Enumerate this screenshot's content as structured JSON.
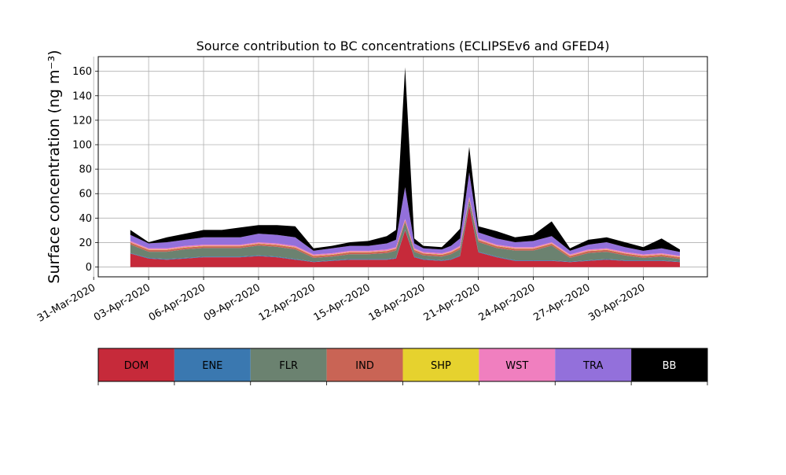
{
  "chart_data": {
    "type": "area",
    "stacked": true,
    "title": "Source contribution to BC concentrations (ECLIPSEv6 and GFED4)",
    "ylabel": "Surface concentration (ng m⁻³)",
    "xlabel": "",
    "ylim": [
      -8,
      172
    ],
    "yticks": [
      0,
      20,
      40,
      60,
      80,
      100,
      120,
      140,
      160
    ],
    "xlim": [
      "2020-03-31T06:00",
      "2020-05-03T12:00"
    ],
    "xticks": [
      "2020-03-31",
      "2020-04-03",
      "2020-04-06",
      "2020-04-09",
      "2020-04-12",
      "2020-04-15",
      "2020-04-18",
      "2020-04-21",
      "2020-04-24",
      "2020-04-27",
      "2020-04-30"
    ],
    "xtick_labels": [
      "31-Mar-2020",
      "03-Apr-2020",
      "06-Apr-2020",
      "09-Apr-2020",
      "12-Apr-2020",
      "15-Apr-2020",
      "18-Apr-2020",
      "21-Apr-2020",
      "24-Apr-2020",
      "27-Apr-2020",
      "30-Apr-2020"
    ],
    "grid": true,
    "legend": "colorbar-below",
    "x": [
      "2020-04-02",
      "2020-04-03",
      "2020-04-04",
      "2020-04-05",
      "2020-04-06",
      "2020-04-07",
      "2020-04-08",
      "2020-04-09",
      "2020-04-10",
      "2020-04-11",
      "2020-04-12",
      "2020-04-13",
      "2020-04-14",
      "2020-04-15",
      "2020-04-16",
      "2020-04-16T12:00",
      "2020-04-17",
      "2020-04-17T12:00",
      "2020-04-18",
      "2020-04-19",
      "2020-04-19T12:00",
      "2020-04-20",
      "2020-04-20T12:00",
      "2020-04-21",
      "2020-04-22",
      "2020-04-23",
      "2020-04-24",
      "2020-04-25",
      "2020-04-26",
      "2020-04-27",
      "2020-04-28",
      "2020-04-29",
      "2020-04-30",
      "2020-05-01",
      "2020-05-02"
    ],
    "series": [
      {
        "name": "DOM",
        "color": "#c62a3a",
        "values": [
          11,
          7,
          6,
          7,
          8,
          8,
          8,
          9,
          8,
          6,
          4,
          5,
          6,
          6,
          6,
          7,
          30,
          8,
          6,
          5,
          6,
          9,
          50,
          12,
          8,
          5,
          5,
          5,
          4,
          5,
          6,
          5,
          5,
          5,
          4
        ]
      },
      {
        "name": "ENE",
        "color": "#3a78b0",
        "values": [
          0.5,
          0.5,
          0.5,
          0.5,
          0.5,
          0.5,
          0.5,
          0.5,
          0.5,
          0.5,
          0.5,
          0.5,
          0.5,
          0.5,
          0.5,
          0.5,
          0.5,
          0.5,
          0.5,
          0.5,
          0.5,
          0.5,
          0.5,
          0.5,
          0.5,
          0.5,
          0.5,
          0.5,
          0.5,
          0.5,
          0.5,
          0.5,
          0.5,
          0.5,
          0.5
        ]
      },
      {
        "name": "FLR",
        "color": "#6b8270",
        "values": [
          7,
          5,
          6,
          7,
          7,
          7,
          7,
          8,
          8,
          8,
          3,
          3,
          4,
          4,
          5,
          6,
          6,
          4,
          3,
          3,
          4,
          5,
          4,
          8,
          7,
          8,
          8,
          12,
          3,
          6,
          6,
          4,
          2,
          3,
          2
        ]
      },
      {
        "name": "IND",
        "color": "#c96455",
        "values": [
          1.5,
          1.5,
          1.5,
          1.5,
          1.5,
          1.5,
          1.5,
          1.5,
          1.5,
          1.5,
          1.5,
          1.5,
          1.5,
          1.5,
          1.5,
          1.5,
          1.5,
          1.5,
          1.5,
          1.5,
          1.5,
          1.5,
          1.5,
          1.5,
          1.5,
          1.5,
          1.5,
          1.5,
          1.5,
          1.5,
          1.5,
          1.5,
          1.5,
          1.5,
          1.5
        ]
      },
      {
        "name": "SHP",
        "color": "#e6d22e",
        "values": [
          0.3,
          0.3,
          0.3,
          0.3,
          0.3,
          0.3,
          0.3,
          0.3,
          0.3,
          0.3,
          0.3,
          0.3,
          0.3,
          0.3,
          0.3,
          0.3,
          0.3,
          0.3,
          0.3,
          0.3,
          0.3,
          0.3,
          0.3,
          0.3,
          0.3,
          0.3,
          0.3,
          0.3,
          0.3,
          0.3,
          0.3,
          0.3,
          0.3,
          0.3,
          0.3
        ]
      },
      {
        "name": "WST",
        "color": "#f07fbf",
        "values": [
          1,
          1,
          1,
          1,
          1,
          1,
          1,
          1,
          1,
          1,
          1,
          1,
          1,
          1,
          1,
          1,
          1,
          1,
          1,
          1,
          1,
          1,
          1,
          1,
          1,
          1,
          1,
          1,
          1,
          1,
          1,
          1,
          1,
          1,
          1
        ]
      },
      {
        "name": "TRA",
        "color": "#9370db",
        "values": [
          5,
          4,
          5,
          5,
          6,
          6,
          6,
          7,
          7,
          7,
          3,
          4,
          4,
          4,
          5,
          6,
          26,
          4,
          3,
          3,
          4,
          6,
          20,
          5,
          5,
          4,
          5,
          5,
          3,
          4,
          5,
          4,
          3,
          4,
          3
        ]
      },
      {
        "name": "BB",
        "color": "#000000",
        "values": [
          4,
          1,
          4,
          5,
          6,
          6,
          8,
          7,
          8,
          9,
          2,
          2,
          3,
          4,
          6,
          8,
          98,
          4,
          2,
          2,
          6,
          8,
          21,
          5,
          6,
          4,
          5,
          12,
          2,
          4,
          4,
          4,
          3,
          8,
          2
        ]
      }
    ]
  }
}
